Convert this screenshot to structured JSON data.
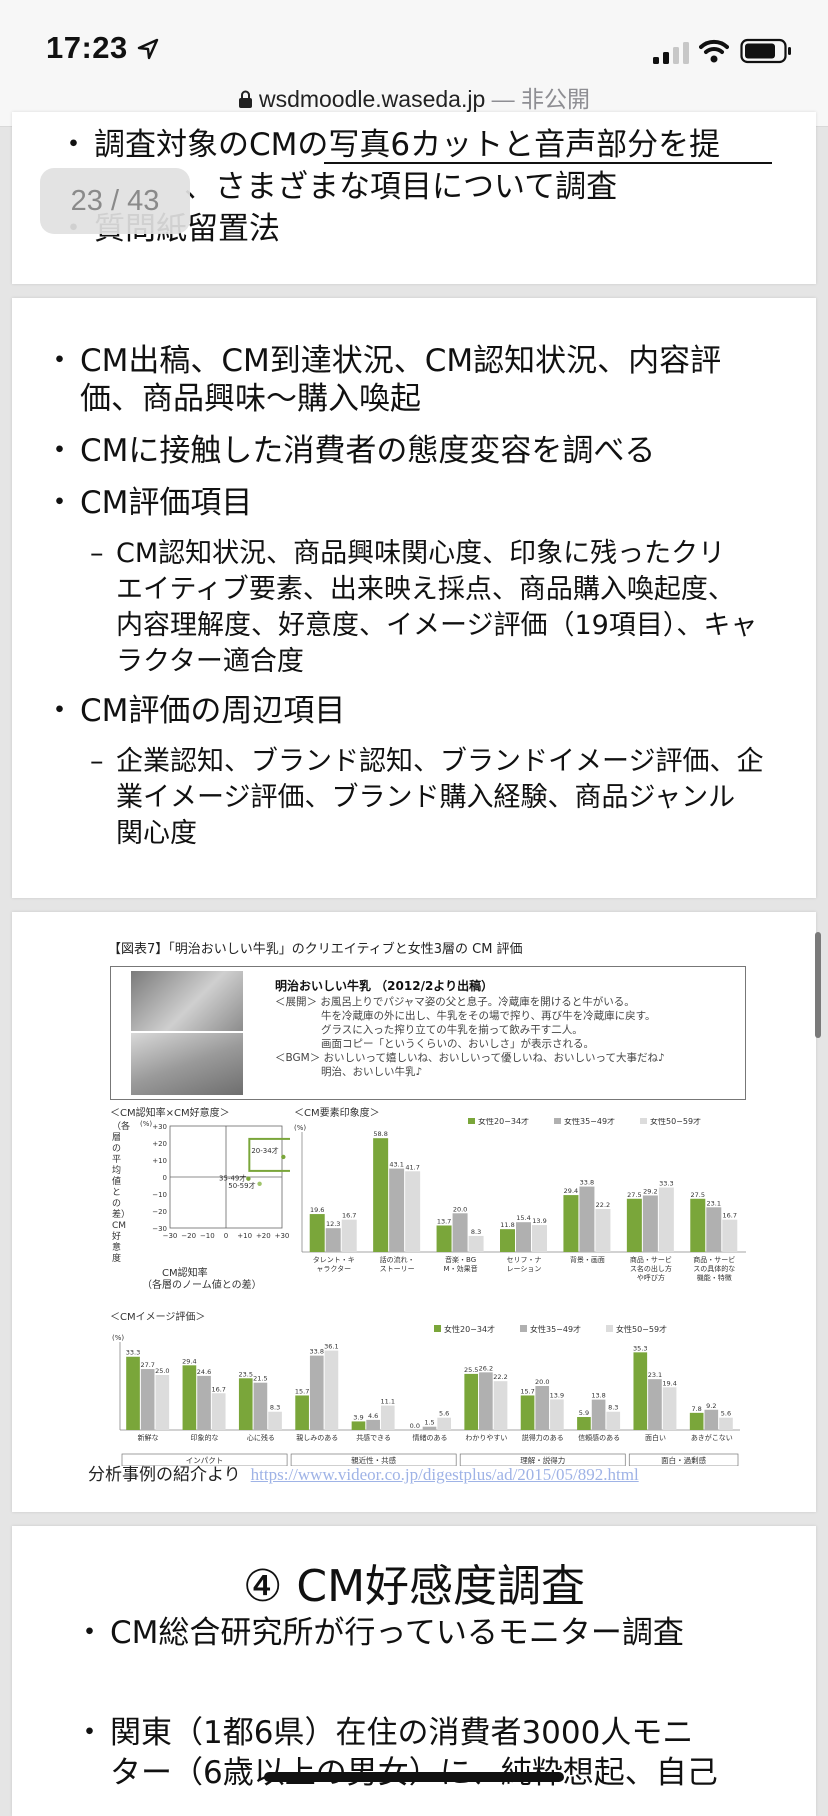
{
  "status_bar": {
    "time": "17:23",
    "url": "wsdmoodle.waseda.jp",
    "privacy": "— 非公開"
  },
  "page_indicator": "23 / 43",
  "slide1": {
    "bullets": [
      "調査対象のCMの写真6カットと音声部分を提",
      "、さまざまな項目について調査",
      "質問紙留置法"
    ]
  },
  "slide2": {
    "b1_l1": "CM出稿、CM到達状況、CM認知状況、内容評",
    "b1_l2": "価、商品興味～購入喚起",
    "b2": "CMに接触した消費者の態度変容を調べる",
    "b3": "CM評価項目",
    "sub3": [
      "CM認知状況、商品興味関心度、印象に残ったクリ",
      "エイティブ要素、出来映え採点、商品購入喚起度、",
      "内容理解度、好意度、イメージ評価（19項目）、キャ",
      "ラクター適合度"
    ],
    "b4": "CM評価の周辺項目",
    "sub4": [
      "企業認知、ブランド認知、ブランドイメージ評価、企",
      "業イメージ評価、ブランド購入経験、商品ジャンル",
      "関心度"
    ]
  },
  "slide3": {
    "figure_title": "【図表7】「明治おいしい牛乳」のクリエイティブと女性3層の CM 評価",
    "product_name": "明治おいしい牛乳 （2012/2より出稿）",
    "product_desc": [
      "＜展開＞ お風呂上りでパジャマ姿の父と息子。冷蔵庫を開けると牛がいる。",
      "牛を冷蔵庫の外に出し、牛乳をその場で搾り、再び牛を冷蔵庫に戻す。",
      "グラスに入った搾り立ての牛乳を揃って飲み干す二人。",
      "画面コピー「というくらいの、おいしさ」が表示される。",
      "＜BGM＞ おいしいって嬉しいね、おいしいって優しいね、おいしいって大事だね♪",
      "明治、おいしい牛乳♪"
    ],
    "scatter_title": "＜CM認知率×CM好意度＞",
    "scatter_ylabel": "（各層の平均値との差）CM好意度",
    "scatter_xlabel": "CM認知率",
    "scatter_xsub": "（各層のノーム値との差）",
    "scatter_labels": [
      "20-34才",
      "35-49才",
      "50-59才"
    ],
    "source_prefix": "分析事例の紹介より",
    "source_url": "https://www.videor.co.jp/digestplus/ad/2015/05/892.html"
  },
  "slide4": {
    "heading": "④  CM好感度調査",
    "b1": "CM総合研究所が行っているモニター調査",
    "b2_l1": "関東（1都6県）在住の消費者3000人モニ",
    "b2_l2": "ター（6歳以上の男女）に、純粋想起、自己"
  },
  "chart_data": [
    {
      "type": "scatter",
      "title": "＜CM認知率×CM好意度＞",
      "xlabel": "CM認知率（各層のノーム値との差）",
      "ylabel": "CM好意度（各層の平均値との差）",
      "unit": "(%)",
      "xlim": [
        -30,
        30
      ],
      "ylim": [
        -30,
        30
      ],
      "points": [
        {
          "name": "20-34才",
          "x": 20,
          "y": 13
        },
        {
          "name": "35-49才",
          "x": 12,
          "y": -1
        },
        {
          "name": "50-59才",
          "x": 18,
          "y": -4
        }
      ]
    },
    {
      "type": "bar",
      "title": "＜CM要素印象度＞",
      "unit": "(%)",
      "categories": [
        "タレント・キャラクター",
        "話の流れ・ストーリー",
        "音楽・BGM・効果音",
        "セリフ・ナレーション",
        "背景・画面",
        "商品・サービス名の出し方や呼び方",
        "商品・サービスの具体的な機能・特徴"
      ],
      "series": [
        {
          "name": "女性20−34才",
          "values": [
            19.6,
            58.8,
            13.7,
            11.8,
            29.4,
            27.5,
            27.5
          ]
        },
        {
          "name": "女性35−49才",
          "values": [
            12.3,
            43.1,
            20.0,
            15.4,
            33.8,
            29.2,
            23.1
          ]
        },
        {
          "name": "女性50−59才",
          "values": [
            16.7,
            41.7,
            8.3,
            13.9,
            22.2,
            33.3,
            16.7
          ]
        }
      ]
    },
    {
      "type": "bar",
      "title": "＜CMイメージ評価＞",
      "unit": "(%)",
      "categories": [
        "新鮮な",
        "印象的な",
        "心に残る",
        "親しみのある",
        "共感できる",
        "情緒のある",
        "わかりやすい",
        "説得力のある",
        "信頼感のある",
        "面白い",
        "あきがこない"
      ],
      "groups": [
        "インパクト",
        "親近性・共感",
        "理解・説得力",
        "面白・過剰感"
      ],
      "series": [
        {
          "name": "女性20−34才",
          "values": [
            33.3,
            29.4,
            23.5,
            15.7,
            3.9,
            0.0,
            25.5,
            15.7,
            5.9,
            35.3,
            7.8
          ]
        },
        {
          "name": "女性35−49才",
          "values": [
            27.7,
            24.6,
            21.5,
            33.8,
            4.6,
            1.5,
            26.2,
            20.0,
            13.8,
            23.1,
            9.2
          ]
        },
        {
          "name": "女性50−59才",
          "values": [
            25.0,
            16.7,
            8.3,
            36.1,
            11.1,
            5.6,
            22.2,
            13.9,
            8.3,
            19.4,
            5.6
          ]
        }
      ]
    }
  ],
  "colors": {
    "s1": "#7aa63a",
    "s2": "#b0b0b0",
    "s3": "#dcdcdc"
  },
  "icons": [
    "location-arrow-icon",
    "signal-icon",
    "wifi-icon",
    "battery-icon",
    "lock-icon"
  ]
}
